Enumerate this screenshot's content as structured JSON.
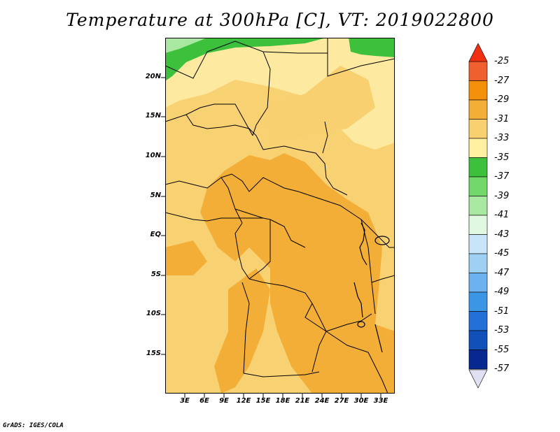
{
  "title": "Temperature at 300hPa [C], VT: 2019022800",
  "credit": "GrADS: IGES/COLA",
  "map": {
    "lat_labels": [
      "20N",
      "15N",
      "10N",
      "5N",
      "EQ",
      "5S",
      "10S",
      "15S"
    ],
    "lon_labels": [
      "3E",
      "6E",
      "9E",
      "12E",
      "15E",
      "18E",
      "21E",
      "24E",
      "27E",
      "30E",
      "33E"
    ]
  },
  "colorbar": {
    "labels": [
      "-25",
      "-27",
      "-29",
      "-31",
      "-33",
      "-35",
      "-37",
      "-39",
      "-41",
      "-43",
      "-45",
      "-47",
      "-49",
      "-51",
      "-53",
      "-55",
      "-57"
    ],
    "colors": [
      "#f0602e",
      "#f4900a",
      "#f3ae37",
      "#f8d070",
      "#fff0a0",
      "#3dc03c",
      "#73d86a",
      "#a8e8a0",
      "#e0f8e0",
      "#c8e4f8",
      "#9ed0f4",
      "#6cb2ee",
      "#3c96e6",
      "#2070d8",
      "#1050b8",
      "#082890"
    ],
    "top_color": "#f03010",
    "bottom_color": "#e0e0f4"
  }
}
